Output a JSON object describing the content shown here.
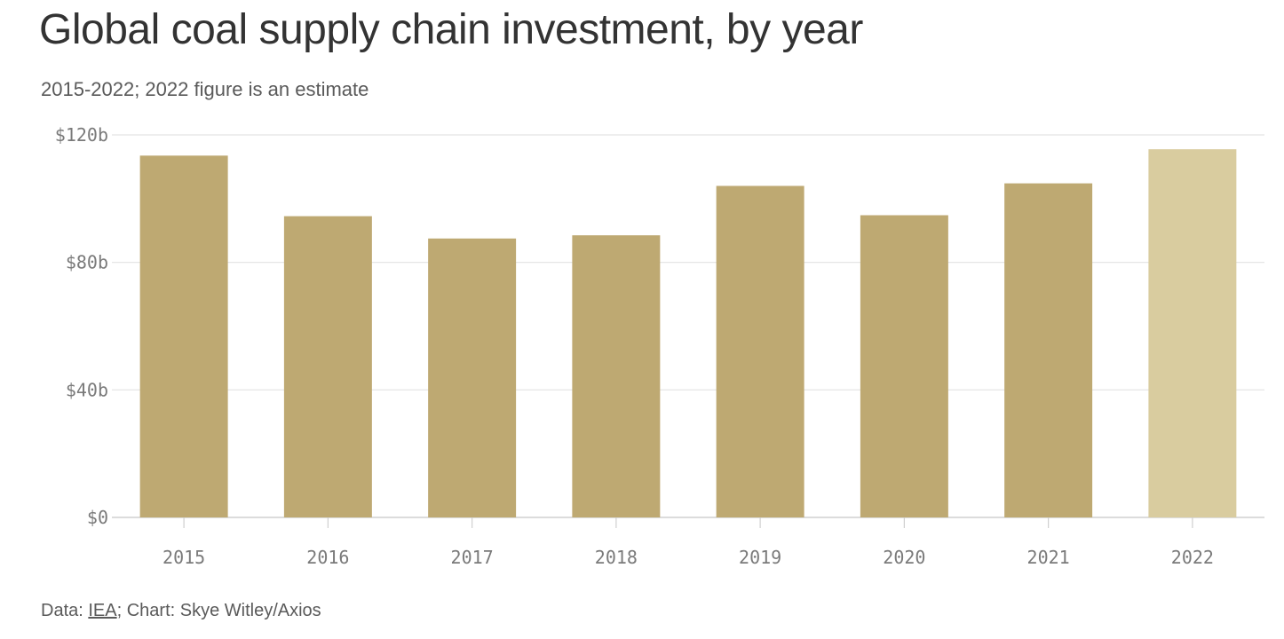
{
  "chart_data": {
    "type": "bar",
    "title": "Global coal supply chain investment, by year",
    "subtitle": "2015-2022; 2022 figure is an estimate",
    "categories": [
      "2015",
      "2016",
      "2017",
      "2018",
      "2019",
      "2020",
      "2021",
      "2022"
    ],
    "values": [
      113.5,
      94.5,
      87.5,
      88.5,
      104,
      94.8,
      104.8,
      115.5
    ],
    "estimated": [
      false,
      false,
      false,
      false,
      false,
      false,
      false,
      true
    ],
    "yticks": [
      0,
      40,
      80,
      120
    ],
    "ytick_labels": [
      "$0",
      "$40b",
      "$80b",
      "$120b"
    ],
    "ylim": [
      0,
      120
    ],
    "xlabel": "",
    "ylabel": "",
    "grid": true,
    "colors": {
      "bar": "#bea972",
      "bar_estimate": "#d9cc9f",
      "grid": "#e3e3e3",
      "axis": "#d0d0d0"
    }
  },
  "footer": {
    "prefix": "Data: ",
    "source_link": "IEA",
    "suffix": "; Chart: Skye Witley/Axios"
  }
}
